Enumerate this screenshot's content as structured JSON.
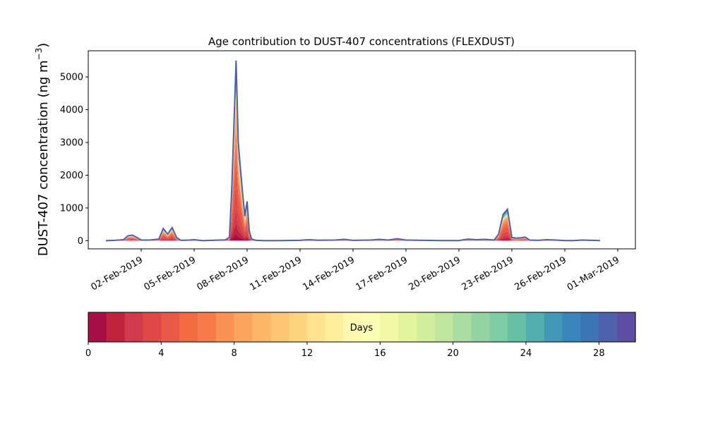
{
  "chart_data": {
    "type": "area",
    "title": "Age contribution to DUST-407 concentrations (FLEXDUST)",
    "ylabel": "DUST-407 concentration (ng m",
    "ylabel_sup": "−3",
    "ylabel_close": ")",
    "xlabel": "",
    "ylim": [
      -250,
      5800
    ],
    "xlim": [
      "2019-01-30",
      "2019-03-02"
    ],
    "yticks": [
      0,
      1000,
      2000,
      3000,
      4000,
      5000
    ],
    "xticks": [
      "02-Feb-2019",
      "05-Feb-2019",
      "08-Feb-2019",
      "11-Feb-2019",
      "14-Feb-2019",
      "17-Feb-2019",
      "20-Feb-2019",
      "23-Feb-2019",
      "26-Feb-2019",
      "01-Mar-2019"
    ],
    "x_range": [
      "2019-01-31",
      "2019-02-28"
    ],
    "grid": false,
    "total_series": {
      "name": "",
      "points": [
        [
          "2019-01-31T00",
          0
        ],
        [
          "2019-01-31T12",
          10
        ],
        [
          "2019-02-01T00",
          30
        ],
        [
          "2019-02-01T06",
          150
        ],
        [
          "2019-02-01T12",
          170
        ],
        [
          "2019-02-01T18",
          100
        ],
        [
          "2019-02-02T00",
          20
        ],
        [
          "2019-02-02T12",
          20
        ],
        [
          "2019-02-03T00",
          50
        ],
        [
          "2019-02-03T06",
          370
        ],
        [
          "2019-02-03T12",
          200
        ],
        [
          "2019-02-03T18",
          400
        ],
        [
          "2019-02-04T00",
          100
        ],
        [
          "2019-02-04T06",
          10
        ],
        [
          "2019-02-04T18",
          20
        ],
        [
          "2019-02-05T00",
          30
        ],
        [
          "2019-02-05T12",
          0
        ],
        [
          "2019-02-06T00",
          10
        ],
        [
          "2019-02-06T12",
          20
        ],
        [
          "2019-02-06T18",
          20
        ],
        [
          "2019-02-07T00",
          100
        ],
        [
          "2019-02-07T03",
          1500
        ],
        [
          "2019-02-07T06",
          3500
        ],
        [
          "2019-02-07T09",
          5500
        ],
        [
          "2019-02-07T12",
          3000
        ],
        [
          "2019-02-07T15",
          2200
        ],
        [
          "2019-02-07T18",
          1400
        ],
        [
          "2019-02-07T21",
          750
        ],
        [
          "2019-02-08T00",
          1200
        ],
        [
          "2019-02-08T03",
          300
        ],
        [
          "2019-02-08T06",
          50
        ],
        [
          "2019-02-08T12",
          10
        ],
        [
          "2019-02-09T00",
          0
        ],
        [
          "2019-02-10T00",
          5
        ],
        [
          "2019-02-11T00",
          10
        ],
        [
          "2019-02-11T12",
          30
        ],
        [
          "2019-02-12T00",
          15
        ],
        [
          "2019-02-13T00",
          20
        ],
        [
          "2019-02-13T12",
          40
        ],
        [
          "2019-02-14T00",
          10
        ],
        [
          "2019-02-15T00",
          20
        ],
        [
          "2019-02-15T12",
          40
        ],
        [
          "2019-02-16T00",
          20
        ],
        [
          "2019-02-16T12",
          60
        ],
        [
          "2019-02-17T00",
          20
        ],
        [
          "2019-02-18T00",
          10
        ],
        [
          "2019-02-19T00",
          5
        ],
        [
          "2019-02-20T00",
          5
        ],
        [
          "2019-02-20T12",
          50
        ],
        [
          "2019-02-21T00",
          30
        ],
        [
          "2019-02-21T12",
          40
        ],
        [
          "2019-02-22T00",
          20
        ],
        [
          "2019-02-22T06",
          200
        ],
        [
          "2019-02-22T12",
          800
        ],
        [
          "2019-02-22T18",
          960
        ],
        [
          "2019-02-23T00",
          100
        ],
        [
          "2019-02-23T06",
          80
        ],
        [
          "2019-02-23T12",
          90
        ],
        [
          "2019-02-23T18",
          110
        ],
        [
          "2019-02-24T00",
          20
        ],
        [
          "2019-02-24T12",
          10
        ],
        [
          "2019-02-25T00",
          30
        ],
        [
          "2019-02-25T12",
          20
        ],
        [
          "2019-02-26T00",
          5
        ],
        [
          "2019-02-26T12",
          5
        ],
        [
          "2019-02-27T00",
          20
        ],
        [
          "2019-02-27T12",
          10
        ],
        [
          "2019-02-28T00",
          5
        ]
      ]
    },
    "colorbar": {
      "label": "Days",
      "min": 0,
      "max": 30,
      "ticks": [
        0,
        4,
        8,
        12,
        16,
        20,
        24,
        28
      ],
      "colors": [
        "#a50f43",
        "#c0233e",
        "#d13a4b",
        "#e04848",
        "#e85a47",
        "#f26b43",
        "#f57c4a",
        "#f99355",
        "#fba45e",
        "#fdb568",
        "#fdc574",
        "#fed481",
        "#fee28f",
        "#feee9e",
        "#fffaaf",
        "#fcfdb5",
        "#f1f9a7",
        "#e3f49c",
        "#d2ed9c",
        "#c0e59f",
        "#aadda2",
        "#95d3a4",
        "#7ecba4",
        "#67bfa5",
        "#54aead",
        "#4399b5",
        "#3a86bc",
        "#3c74b4",
        "#4e60ab",
        "#5e4fa2"
      ]
    }
  }
}
